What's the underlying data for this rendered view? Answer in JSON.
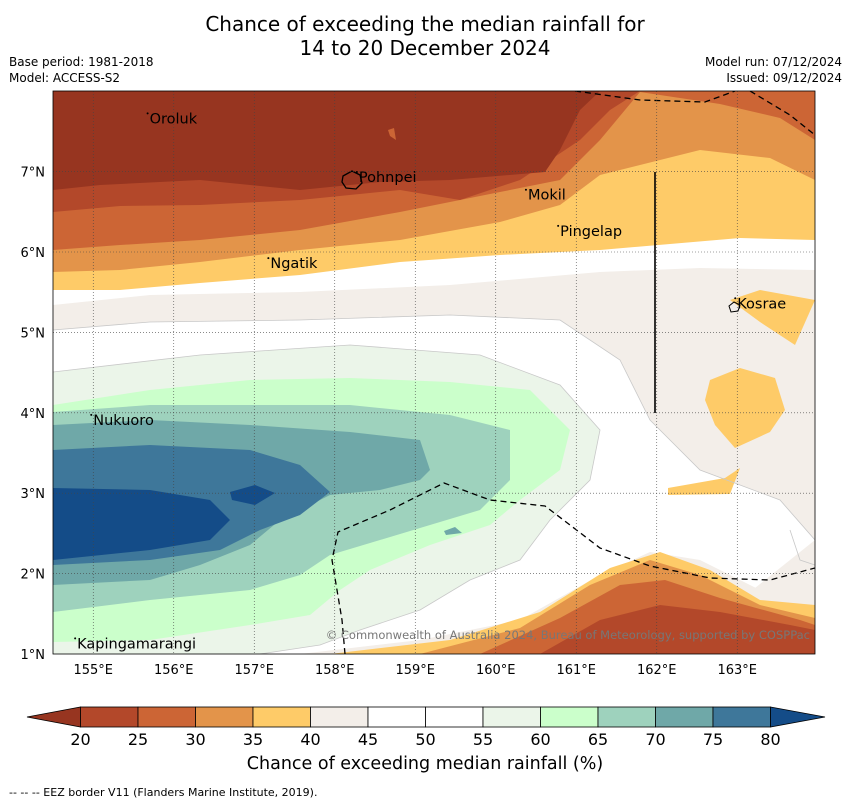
{
  "title_line1": "Chance of exceeding the median rainfall for",
  "title_line2": "14 to 20 December 2024",
  "base_period": "Base period: 1981-2018",
  "model": "Model: ACCESS-S2",
  "model_run": "Model run: 07/12/2024",
  "issued": "Issued: 09/12/2024",
  "lon_ticks": [
    "155°E",
    "156°E",
    "157°E",
    "158°E",
    "159°E",
    "160°E",
    "161°E",
    "162°E",
    "163°E"
  ],
  "lat_ticks": [
    "7°N",
    "6°N",
    "5°N",
    "4°N",
    "3°N",
    "2°N",
    "1°N"
  ],
  "places": [
    {
      "name": "Oroluk",
      "lon": 155.7,
      "lat": 7.6
    },
    {
      "name": "Pohnpei",
      "lon": 158.3,
      "lat": 6.87
    },
    {
      "name": "Mokil",
      "lon": 160.4,
      "lat": 6.65
    },
    {
      "name": "Pingelap",
      "lon": 160.8,
      "lat": 6.2
    },
    {
      "name": "Ngatik",
      "lon": 157.2,
      "lat": 5.8
    },
    {
      "name": "Kosrae",
      "lon": 163.0,
      "lat": 5.3
    },
    {
      "name": "Nukuoro",
      "lon": 155.0,
      "lat": 3.85
    },
    {
      "name": "Kapingamarangi",
      "lon": 154.8,
      "lat": 1.07
    }
  ],
  "copyright": "© Commonwealth of Australia 2024, Bureau of Meteorology, supported by COSPPac",
  "colorbar": {
    "ticks": [
      "20",
      "25",
      "30",
      "35",
      "40",
      "45",
      "50",
      "55",
      "60",
      "65",
      "70",
      "75",
      "80"
    ],
    "colors": [
      "#973520",
      "#b3482a",
      "#cc6535",
      "#e3944a",
      "#fecb68",
      "#f3eee9",
      "#ffffff",
      "#ffffff",
      "#ebf5e9",
      "#cbffcb",
      "#9ed2bd",
      "#6fa8a8",
      "#3e779a",
      "#144c88"
    ],
    "label": "Chance of exceeding median rainfall (%)"
  },
  "footnote": "--  --  -- EEZ border V11 (Flanders Marine Institute, 2019)."
}
